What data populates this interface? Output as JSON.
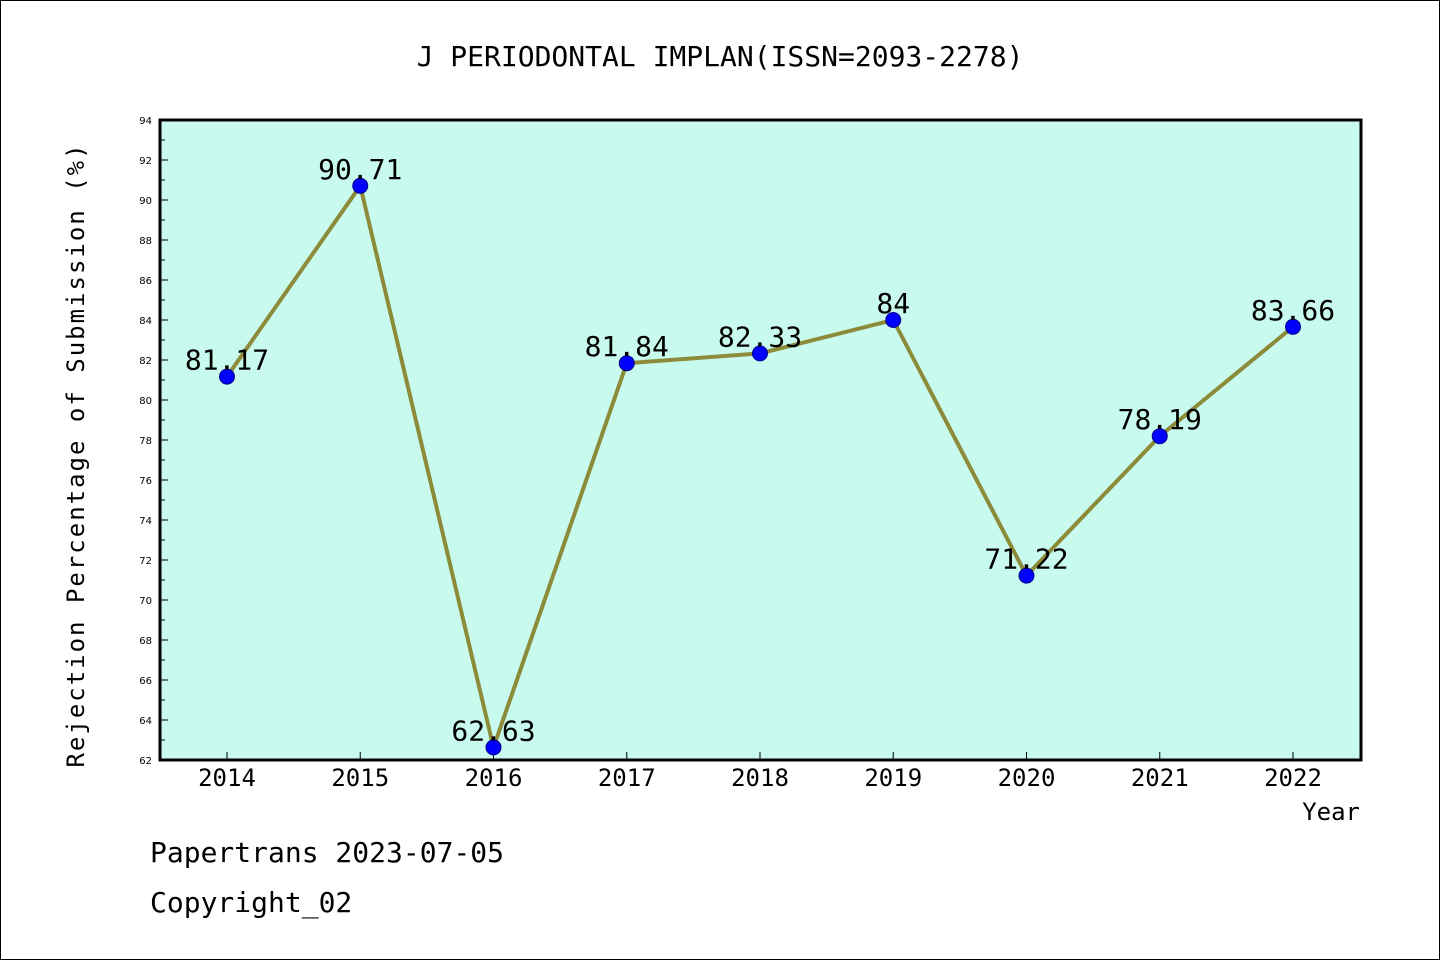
{
  "chart_data": {
    "type": "line",
    "title": "J PERIODONTAL IMPLAN(ISSN=2093-2278)",
    "xlabel": "Year",
    "ylabel": "Rejection Percentage of Submission (%)",
    "categories": [
      "2014",
      "2015",
      "2016",
      "2017",
      "2018",
      "2019",
      "2020",
      "2021",
      "2022"
    ],
    "series": [
      {
        "values": [
          81.17,
          90.71,
          62.63,
          81.84,
          82.33,
          84,
          71.22,
          78.19,
          83.66
        ],
        "labels": [
          "81.17",
          "90.71",
          "62.63",
          "81.84",
          "82.33",
          "84",
          "71.22",
          "78.19",
          "83.66"
        ]
      }
    ],
    "ylim": [
      62,
      94
    ],
    "yticks": [
      62,
      64,
      66,
      68,
      70,
      72,
      74,
      76,
      78,
      80,
      82,
      84,
      86,
      88,
      90,
      92,
      94
    ],
    "grid": false,
    "colors": {
      "plot_bg": "#c8fbee",
      "line": "#8b8b3a",
      "marker": "#0000ff"
    }
  },
  "footer": {
    "line1": "Papertrans 2023-07-05",
    "line2": "Copyright_02"
  }
}
